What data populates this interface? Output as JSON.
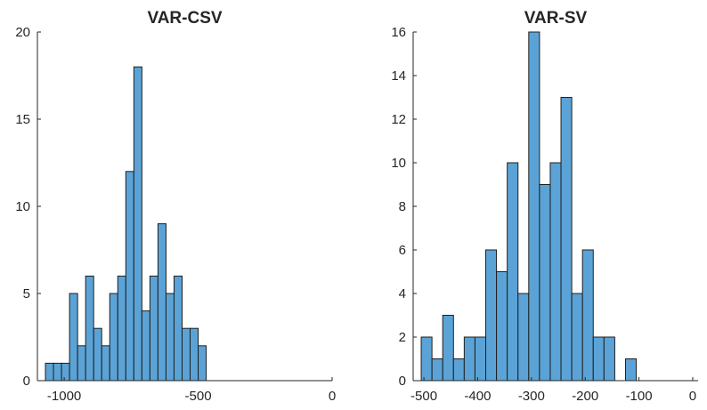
{
  "chart_data": [
    {
      "type": "bar",
      "title": "VAR-CSV",
      "xlim": [
        -1100,
        0
      ],
      "ylim": [
        0,
        20
      ],
      "xticks": [
        -1000,
        -500,
        0
      ],
      "xtick_labels": [
        "-1000",
        "-500",
        "0"
      ],
      "yticks": [
        0,
        5,
        10,
        15,
        20
      ],
      "ytick_labels": [
        "0",
        "5",
        "10",
        "15",
        "20"
      ],
      "bin_start": -1070,
      "bin_width": 30,
      "values": [
        1,
        1,
        1,
        5,
        2,
        6,
        3,
        2,
        5,
        6,
        12,
        18,
        4,
        6,
        9,
        5,
        6,
        3,
        3,
        2
      ],
      "grid": false,
      "bar_color": "#5ba3d6"
    },
    {
      "type": "bar",
      "title": "VAR-SV",
      "xlim": [
        -520,
        10
      ],
      "ylim": [
        0,
        16
      ],
      "xticks": [
        -500,
        -400,
        -300,
        -200,
        -100,
        0
      ],
      "xtick_labels": [
        "-500",
        "-400",
        "-300",
        "-200",
        "-100",
        "0"
      ],
      "yticks": [
        0,
        2,
        4,
        6,
        8,
        10,
        12,
        14,
        16
      ],
      "ytick_labels": [
        "0",
        "2",
        "4",
        "6",
        "8",
        "10",
        "12",
        "14",
        "16"
      ],
      "bin_start": -505,
      "bin_width": 20,
      "values": [
        2,
        1,
        3,
        1,
        2,
        2,
        6,
        5,
        10,
        4,
        16,
        9,
        10,
        13,
        4,
        6,
        2,
        2,
        0,
        1
      ],
      "grid": false,
      "bar_color": "#5ba3d6"
    }
  ]
}
